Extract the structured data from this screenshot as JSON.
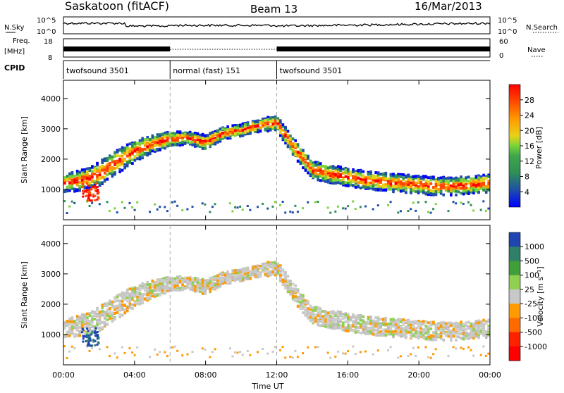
{
  "header": {
    "station": "Saskatoon (fitACF)",
    "beam": "Beam 13",
    "date": "16/Mar/2013"
  },
  "noise_panel": {
    "left_label": "N.Sky",
    "left_tick_top": "10^5",
    "left_tick_bottom": "10^0",
    "right_label": "N.Search",
    "right_tick_top": "10^5",
    "right_tick_bottom": "10^0"
  },
  "freq_panel": {
    "left_label_1": "Freq.",
    "left_label_2": "[MHz]",
    "left_tick_top": "18",
    "left_tick_bottom": "8",
    "right_label": "Nave",
    "right_tick_top": "60",
    "right_tick_bottom": "0"
  },
  "cpid_panel": {
    "label": "CPID",
    "segments": [
      {
        "name": "twofsound 3501",
        "start_hour": 0,
        "end_hour": 6
      },
      {
        "name": "normal (fast) 151",
        "start_hour": 6,
        "end_hour": 12
      },
      {
        "name": "twofsound 3501",
        "start_hour": 12,
        "end_hour": 24
      }
    ]
  },
  "x_axis": {
    "label": "Time UT",
    "ticks": [
      "00:00",
      "04:00",
      "08:00",
      "12:00",
      "16:00",
      "20:00",
      "00:00"
    ],
    "range_hours": [
      0,
      24
    ],
    "mode_change_hours": [
      6,
      12
    ]
  },
  "y_axis": {
    "label": "Slant Range [km]",
    "ticks": [
      "1000",
      "2000",
      "3000",
      "4000"
    ],
    "range_km": [
      0,
      4600
    ]
  },
  "power_colorbar": {
    "label": "Power [dB]",
    "ticks": [
      "4",
      "8",
      "12",
      "16",
      "20",
      "24",
      "28"
    ],
    "colors": [
      "#0000ff",
      "#1f4ea8",
      "#2f8f55",
      "#7ad43a",
      "#e8d21a",
      "#ff9a00",
      "#ff4a00",
      "#ff0000"
    ]
  },
  "velocity_colorbar": {
    "label": "Velocity [m s⁻¹]",
    "ticks": [
      "1000",
      "500",
      "100",
      "25",
      "-25",
      "-100",
      "-500",
      "-1000"
    ],
    "colors": [
      "#1f45b0",
      "#2f7f6a",
      "#3f9f3a",
      "#8fd050",
      "#c8c8c8",
      "#ff9a00",
      "#ff6a00",
      "#ff2000",
      "#ff0000"
    ]
  },
  "chart_data": [
    {
      "type": "heatmap",
      "title": "Power [dB]",
      "xlabel": "Time UT",
      "ylabel": "Slant Range [km]",
      "xlim_hours": [
        0,
        24
      ],
      "ylim_km": [
        0,
        4600
      ],
      "zlim_db": [
        0,
        32
      ],
      "scatter_band": {
        "hours": [
          0,
          1,
          2,
          3,
          4,
          5,
          6,
          7,
          8,
          9,
          10,
          11,
          12,
          13,
          14,
          15,
          16,
          17,
          18,
          19,
          20,
          21,
          22,
          23,
          24
        ],
        "center_km": [
          1250,
          1350,
          1550,
          1950,
          2300,
          2550,
          2700,
          2750,
          2600,
          2900,
          3000,
          3150,
          3250,
          2400,
          1700,
          1550,
          1450,
          1350,
          1300,
          1250,
          1200,
          1150,
          1150,
          1200,
          1250
        ],
        "half_width_km": [
          300,
          350,
          400,
          400,
          350,
          300,
          250,
          200,
          250,
          200,
          200,
          200,
          250,
          300,
          300,
          300,
          300,
          300,
          300,
          300,
          300,
          300,
          300,
          300,
          300
        ]
      }
    },
    {
      "type": "heatmap",
      "title": "Velocity [m s⁻¹]",
      "xlabel": "Time UT",
      "ylabel": "Slant Range [km]",
      "xlim_hours": [
        0,
        24
      ],
      "ylim_km": [
        0,
        4600
      ],
      "zlim_ms": [
        -1000,
        1000
      ]
    }
  ]
}
